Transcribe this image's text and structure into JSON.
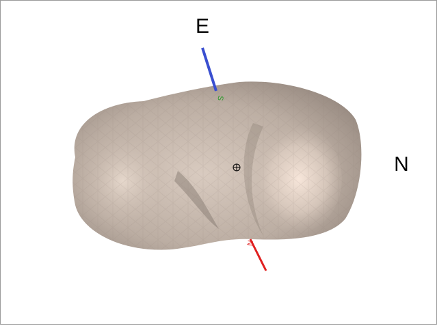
{
  "labels": {
    "east": "E",
    "north": "N",
    "south_axis": "S",
    "north_axis": "N"
  }
}
